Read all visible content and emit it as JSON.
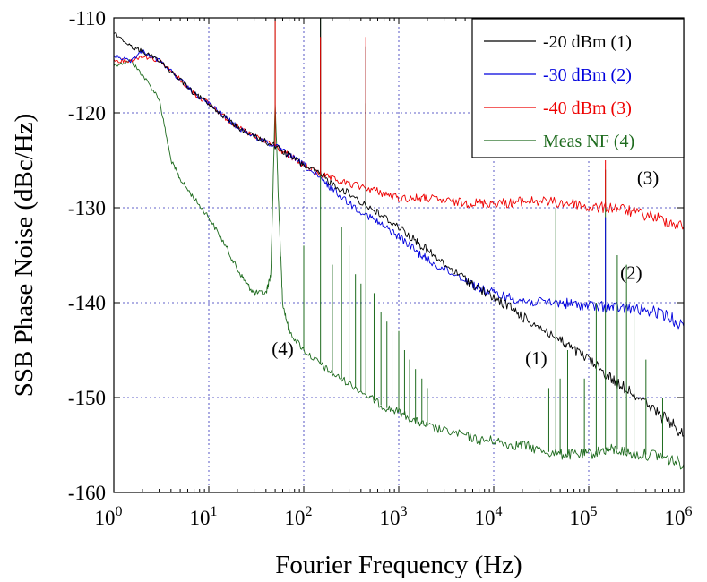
{
  "chart_data": {
    "type": "line",
    "title": "",
    "xlabel": "Fourier Frequency (Hz)",
    "ylabel": "SSB Phase Noise (dBc/Hz)",
    "xscale": "log",
    "xlim": [
      1,
      1000000
    ],
    "ylim": [
      -160,
      -110
    ],
    "x_ticks": [
      {
        "value": 1,
        "base": "10",
        "exp": "0"
      },
      {
        "value": 10,
        "base": "10",
        "exp": "1"
      },
      {
        "value": 100,
        "base": "10",
        "exp": "2"
      },
      {
        "value": 1000,
        "base": "10",
        "exp": "3"
      },
      {
        "value": 10000,
        "base": "10",
        "exp": "4"
      },
      {
        "value": 100000,
        "base": "10",
        "exp": "5"
      },
      {
        "value": 1000000,
        "base": "10",
        "exp": "6"
      }
    ],
    "y_ticks": [
      {
        "value": -110,
        "label": "-110"
      },
      {
        "value": -120,
        "label": "-120"
      },
      {
        "value": -130,
        "label": "-130"
      },
      {
        "value": -140,
        "label": "-140"
      },
      {
        "value": -150,
        "label": "-150"
      },
      {
        "value": -160,
        "label": "-160"
      }
    ],
    "grid": true,
    "legend_position": "top-right",
    "series": [
      {
        "name": "-20 dBm (1)",
        "color": "#000000",
        "x": [
          1,
          1.5,
          2,
          3,
          5,
          7,
          10,
          15,
          20,
          30,
          50,
          70,
          100,
          150,
          200,
          300,
          500,
          700,
          1000,
          1500,
          2000,
          3000,
          5000,
          7000,
          10000,
          15000,
          20000,
          30000,
          50000,
          70000,
          100000,
          150000,
          200000,
          300000,
          500000,
          700000,
          1000000
        ],
        "y": [
          -111.5,
          -113,
          -113.5,
          -114.5,
          -116.5,
          -118,
          -119,
          -120.5,
          -121.5,
          -122.5,
          -123.5,
          -124.5,
          -125.5,
          -126.5,
          -127.5,
          -128.5,
          -130,
          -131,
          -132,
          -133.5,
          -134.5,
          -136,
          -137.5,
          -138.5,
          -139.5,
          -140.5,
          -141.5,
          -142.5,
          -144,
          -145,
          -146,
          -147.5,
          -148.5,
          -149.5,
          -151.5,
          -152.5,
          -154
        ]
      },
      {
        "name": "-30 dBm (2)",
        "color": "#0000dd",
        "x": [
          1,
          1.5,
          2,
          3,
          5,
          7,
          10,
          15,
          20,
          30,
          50,
          70,
          100,
          150,
          200,
          300,
          500,
          700,
          1000,
          1500,
          2000,
          3000,
          5000,
          7000,
          10000,
          15000,
          20000,
          30000,
          50000,
          70000,
          100000,
          150000,
          200000,
          300000,
          500000,
          700000,
          1000000
        ],
        "y": [
          -114,
          -114.5,
          -113.5,
          -114.5,
          -116.5,
          -118,
          -119,
          -120.5,
          -121.5,
          -122.5,
          -123.5,
          -124.5,
          -125.5,
          -127,
          -128,
          -129.5,
          -131,
          -132,
          -133,
          -134.5,
          -135.5,
          -136.5,
          -137.5,
          -138.5,
          -139,
          -139.5,
          -139.8,
          -140,
          -140,
          -140.2,
          -140.3,
          -140.5,
          -140.5,
          -140.7,
          -141,
          -141.5,
          -142.5
        ]
      },
      {
        "name": "-40 dBm (3)",
        "color": "#ee0000",
        "x": [
          1,
          1.5,
          2,
          3,
          5,
          7,
          10,
          15,
          20,
          30,
          50,
          70,
          100,
          150,
          200,
          300,
          500,
          700,
          1000,
          1500,
          2000,
          3000,
          5000,
          7000,
          10000,
          15000,
          20000,
          30000,
          50000,
          70000,
          100000,
          150000,
          200000,
          300000,
          500000,
          700000,
          1000000
        ],
        "y": [
          -114.5,
          -114.5,
          -114,
          -114.5,
          -116.5,
          -118,
          -119,
          -120.5,
          -121.5,
          -122.5,
          -123.5,
          -124.5,
          -125.5,
          -126.5,
          -127,
          -127.5,
          -128,
          -128.5,
          -129,
          -129,
          -129,
          -129.3,
          -129.5,
          -129.5,
          -129.5,
          -129.5,
          -129.3,
          -129.3,
          -129.5,
          -129.5,
          -130,
          -130,
          -130,
          -130.5,
          -131,
          -131.5,
          -132
        ]
      },
      {
        "name": "Meas NF (4)",
        "color": "#1e6b1e",
        "x": [
          1,
          1.5,
          2,
          3,
          4,
          5,
          7,
          10,
          15,
          20,
          25,
          30,
          40,
          45,
          50,
          55,
          60,
          70,
          100,
          150,
          200,
          300,
          500,
          700,
          1000,
          1500,
          2000,
          3000,
          5000,
          7000,
          10000,
          15000,
          20000,
          30000,
          50000,
          70000,
          100000,
          150000,
          200000,
          300000,
          500000,
          700000,
          1000000
        ],
        "y": [
          -115,
          -114.5,
          -116,
          -118.5,
          -125,
          -127,
          -129,
          -131,
          -134,
          -136.5,
          -138,
          -139,
          -139,
          -137,
          -119,
          -131,
          -140,
          -143,
          -145,
          -146.5,
          -147.5,
          -148.5,
          -150,
          -151,
          -151.5,
          -152.5,
          -153,
          -153.5,
          -154,
          -154.5,
          -154.5,
          -155,
          -155,
          -155.5,
          -156,
          -156,
          -156,
          -155.5,
          -155.5,
          -156,
          -156,
          -156.5,
          -157
        ]
      }
    ],
    "spurs": [
      {
        "series": 3,
        "x": 50,
        "y": -110
      },
      {
        "series": 3,
        "x": 100,
        "y": -134
      },
      {
        "series": 3,
        "x": 150,
        "y": -110
      },
      {
        "series": 3,
        "x": 200,
        "y": -136
      },
      {
        "series": 3,
        "x": 250,
        "y": -132
      },
      {
        "series": 3,
        "x": 300,
        "y": -134
      },
      {
        "series": 3,
        "x": 350,
        "y": -137
      },
      {
        "series": 3,
        "x": 400,
        "y": -138
      },
      {
        "series": 3,
        "x": 450,
        "y": -119
      },
      {
        "series": 3,
        "x": 550,
        "y": -139
      },
      {
        "series": 3,
        "x": 650,
        "y": -141
      },
      {
        "series": 3,
        "x": 750,
        "y": -142
      },
      {
        "series": 3,
        "x": 850,
        "y": -143
      },
      {
        "series": 3,
        "x": 1000,
        "y": -143
      },
      {
        "series": 3,
        "x": 1150,
        "y": -145
      },
      {
        "series": 3,
        "x": 1300,
        "y": -146
      },
      {
        "series": 3,
        "x": 1500,
        "y": -147
      },
      {
        "series": 3,
        "x": 1750,
        "y": -148
      },
      {
        "series": 3,
        "x": 2000,
        "y": -149
      },
      {
        "series": 3,
        "x": 38000,
        "y": -149
      },
      {
        "series": 3,
        "x": 45000,
        "y": -130
      },
      {
        "series": 3,
        "x": 50000,
        "y": -148
      },
      {
        "series": 3,
        "x": 60000,
        "y": -145
      },
      {
        "series": 3,
        "x": 90000,
        "y": -148
      },
      {
        "series": 3,
        "x": 120000,
        "y": -140
      },
      {
        "series": 3,
        "x": 150000,
        "y": -126
      },
      {
        "series": 3,
        "x": 200000,
        "y": -135
      },
      {
        "series": 3,
        "x": 250000,
        "y": -136
      },
      {
        "series": 3,
        "x": 300000,
        "y": -140
      },
      {
        "series": 3,
        "x": 400000,
        "y": -146
      },
      {
        "series": 3,
        "x": 600000,
        "y": -150
      },
      {
        "series": 0,
        "x": 150,
        "y": -110
      },
      {
        "series": 0,
        "x": 450,
        "y": -113
      },
      {
        "series": 1,
        "x": 150000,
        "y": -131
      },
      {
        "series": 2,
        "x": 50,
        "y": -110
      },
      {
        "series": 2,
        "x": 150,
        "y": -112
      },
      {
        "series": 2,
        "x": 450,
        "y": -112
      },
      {
        "series": 2,
        "x": 150000,
        "y": -125
      }
    ],
    "annotations": [
      {
        "text": "(1)",
        "x": 28000,
        "y": -146.5
      },
      {
        "text": "(2)",
        "x": 280000,
        "y": -137.5
      },
      {
        "text": "(3)",
        "x": 420000,
        "y": -127.5
      },
      {
        "text": "(4)",
        "x": 60,
        "y": -145.5
      }
    ]
  }
}
